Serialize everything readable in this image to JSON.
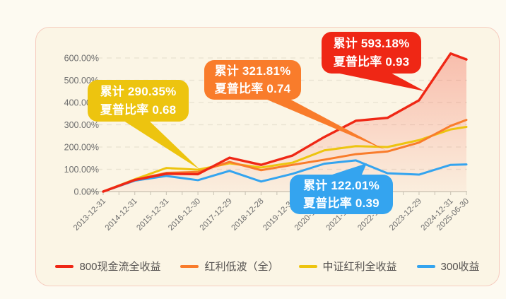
{
  "chart_data": {
    "type": "line",
    "title": "",
    "xlabel": "",
    "ylabel": "",
    "grid": "dashed-horizontal",
    "ylim": [
      0,
      650
    ],
    "y_ticks": [
      "0.00%",
      "100.00%",
      "200.00%",
      "300.00%",
      "400.00%",
      "500.00%",
      "600.00%"
    ],
    "x": [
      "2013-12-31",
      "2014-12-31",
      "2015-12-31",
      "2016-12-30",
      "2017-12-29",
      "2018-12-28",
      "2019-12-31",
      "2020-12-31",
      "2021-12-31",
      "2022-12-30",
      "2023-12-29",
      "2024-12-31",
      "2025-06-30"
    ],
    "series": [
      {
        "name": "800现金流全收益",
        "color": "#EF2715",
        "area": true,
        "values": [
          0,
          52,
          80,
          78,
          152,
          120,
          162,
          245,
          318,
          331,
          410,
          620,
          593.18
        ]
      },
      {
        "name": "红利低波（全）",
        "color": "#F97C2B",
        "area": false,
        "values": [
          0,
          53,
          84,
          88,
          133,
          96,
          120,
          143,
          168,
          180,
          220,
          295,
          321.81
        ]
      },
      {
        "name": "中证红利全收益",
        "color": "#EDC40F",
        "area": false,
        "values": [
          0,
          55,
          106,
          98,
          127,
          108,
          130,
          185,
          204,
          200,
          231,
          279,
          290.35
        ]
      },
      {
        "name": "300收益",
        "color": "#34A4EF",
        "area": false,
        "values": [
          0,
          49,
          70,
          51,
          93,
          45,
          80,
          125,
          140,
          82,
          76,
          120,
          122.01
        ]
      }
    ]
  },
  "callouts": {
    "yellow": {
      "line1": "累计 290.35%",
      "line2": "夏普比率 0.68"
    },
    "orange": {
      "line1": "累计 321.81%",
      "line2": "夏普比率 0.74"
    },
    "red": {
      "line1": "累计 593.18%",
      "line2": "夏普比率 0.93"
    },
    "blue": {
      "line1": "累计 122.01%",
      "line2": "夏普比率 0.39"
    }
  },
  "legend": {
    "items": [
      {
        "label": "800现金流全收益",
        "color": "#EF2715"
      },
      {
        "label": "红利低波（全）",
        "color": "#F97C2B"
      },
      {
        "label": "中证红利全收益",
        "color": "#EDC40F"
      },
      {
        "label": "300收益",
        "color": "#34A4EF"
      }
    ]
  }
}
